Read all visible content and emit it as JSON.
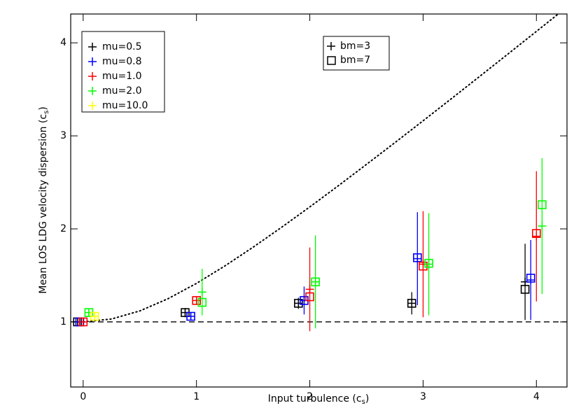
{
  "chart_data": {
    "type": "scatter",
    "x_label": {
      "text": "Input turbulence (c",
      "sub": "s",
      "end": ")"
    },
    "y_label": {
      "text": "Mean LOS LDG velocity dispersion (c",
      "sub": "s",
      "end": ")"
    },
    "xlim": [
      -0.11,
      4.27
    ],
    "ylim": [
      0.3,
      4.31
    ],
    "xticks": [
      0,
      1,
      2,
      3,
      4
    ],
    "yticks": [
      1,
      2,
      3,
      4
    ],
    "hline": 1,
    "curve": {
      "x": [
        0,
        0.25,
        0.5,
        0.75,
        1,
        1.25,
        1.5,
        1.75,
        2,
        2.25,
        2.5,
        2.75,
        3,
        3.25,
        3.5,
        3.75,
        4,
        4.25
      ],
      "values": [
        1,
        1.031,
        1.118,
        1.25,
        1.414,
        1.601,
        1.803,
        2.016,
        2.236,
        2.462,
        2.693,
        2.926,
        3.162,
        3.4,
        3.64,
        3.881,
        4.123,
        4.366
      ]
    },
    "series": [
      {
        "name": "mu=0.5",
        "color": "#000000",
        "x": [
          -0.05,
          0.9,
          1.9,
          2.9,
          3.9
        ],
        "values": [
          1.0,
          1.1,
          1.2,
          1.2,
          1.43
        ],
        "errors": [
          0.02,
          0.05,
          0.06,
          0.12,
          0.41
        ],
        "box_x": [
          -0.05,
          0.9,
          1.9,
          2.9,
          3.9
        ],
        "box_values": [
          1.0,
          1.1,
          1.2,
          1.2,
          1.35
        ]
      },
      {
        "name": "mu=0.8",
        "color": "#0000ff",
        "x": [
          -0.03,
          0.95,
          1.95,
          2.95,
          3.95
        ],
        "values": [
          1.0,
          1.06,
          1.23,
          1.68,
          1.45
        ],
        "errors": [
          0.02,
          0.04,
          0.15,
          0.5,
          0.43
        ],
        "box_x": [
          -0.03,
          0.95,
          1.95,
          2.95,
          3.95
        ],
        "box_values": [
          1.0,
          1.06,
          1.23,
          1.69,
          1.47
        ]
      },
      {
        "name": "mu=1.0",
        "color": "#ff0000",
        "x": [
          0,
          1.0,
          2.0,
          3.0,
          4.0
        ],
        "values": [
          1.0,
          1.23,
          1.35,
          1.62,
          1.92
        ],
        "errors": [
          0.02,
          0.04,
          0.45,
          0.57,
          0.7
        ],
        "box_x": [
          0,
          1.0,
          2.0,
          3.0,
          4.0
        ],
        "box_values": [
          1.0,
          1.23,
          1.27,
          1.6,
          1.95
        ]
      },
      {
        "name": "mu=2.0",
        "color": "#00ff00",
        "x": [
          0.05,
          1.05,
          2.05,
          3.05,
          4.05
        ],
        "values": [
          1.1,
          1.32,
          1.43,
          1.62,
          2.03
        ],
        "errors": [
          0.03,
          0.25,
          0.5,
          0.55,
          0.73
        ],
        "box_x": [
          0.05,
          1.05,
          2.05,
          3.05,
          4.05
        ],
        "box_values": [
          1.1,
          1.21,
          1.43,
          1.63,
          2.26
        ]
      },
      {
        "name": "mu=10.0",
        "color": "#ffff00",
        "x": [
          0.1
        ],
        "values": [
          1.06
        ],
        "errors": [
          0.03
        ],
        "box_x": [
          0.1
        ],
        "box_values": [
          1.06
        ]
      }
    ],
    "marker_legend": [
      "bm=3",
      "bm=7"
    ]
  }
}
